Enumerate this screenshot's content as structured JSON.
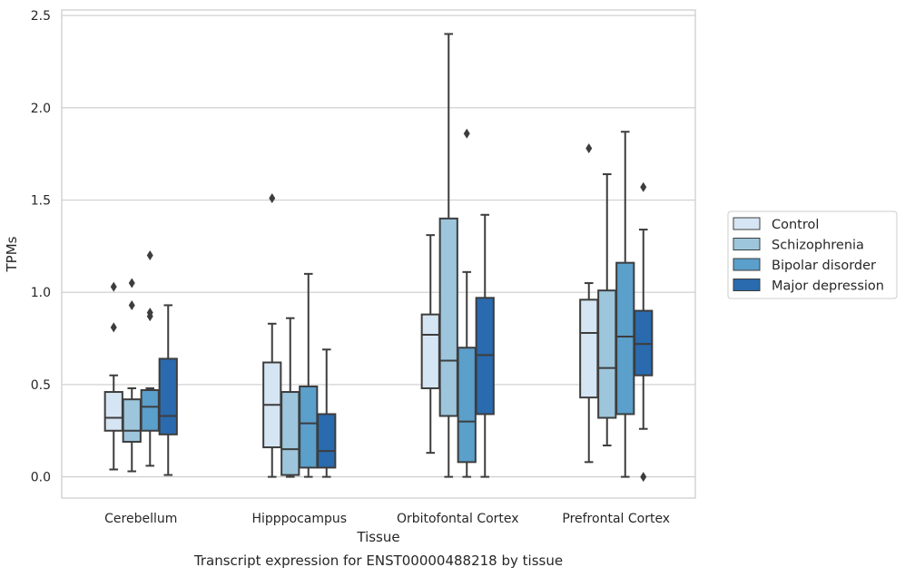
{
  "chart_data": {
    "type": "box",
    "caption": "Transcript expression for ENST00000488218 by tissue",
    "xlabel": "Tissue",
    "ylabel": "TPMs",
    "ylim": [
      -0.115,
      2.53
    ],
    "yticks": [
      "0.0",
      "0.5",
      "1.0",
      "1.5",
      "2.0",
      "2.5"
    ],
    "grid": "horizontal",
    "legend_position": "right",
    "categories": [
      "Cerebellum",
      "Hipppocampus",
      "Orbitofontal Cortex",
      "Prefrontal Cortex"
    ],
    "series": [
      {
        "name": "Control",
        "color": "#d6e5f3",
        "boxes": [
          {
            "whisker_low": 0.04,
            "q1": 0.25,
            "median": 0.32,
            "q3": 0.46,
            "whisker_high": 0.55,
            "outliers": [
              0.81,
              1.03
            ]
          },
          {
            "whisker_low": 0.0,
            "q1": 0.16,
            "median": 0.39,
            "q3": 0.62,
            "whisker_high": 0.83,
            "outliers": [
              1.51
            ]
          },
          {
            "whisker_low": 0.13,
            "q1": 0.48,
            "median": 0.77,
            "q3": 0.88,
            "whisker_high": 1.31,
            "outliers": []
          },
          {
            "whisker_low": 0.08,
            "q1": 0.43,
            "median": 0.78,
            "q3": 0.96,
            "whisker_high": 1.05,
            "outliers": [
              1.78
            ]
          }
        ]
      },
      {
        "name": "Schizophrenia",
        "color": "#9dc6dd",
        "boxes": [
          {
            "whisker_low": 0.03,
            "q1": 0.19,
            "median": 0.25,
            "q3": 0.42,
            "whisker_high": 0.48,
            "outliers": [
              0.93,
              1.05
            ]
          },
          {
            "whisker_low": 0.0,
            "q1": 0.01,
            "median": 0.15,
            "q3": 0.46,
            "whisker_high": 0.86,
            "outliers": []
          },
          {
            "whisker_low": 0.0,
            "q1": 0.33,
            "median": 0.63,
            "q3": 1.4,
            "whisker_high": 2.4,
            "outliers": []
          },
          {
            "whisker_low": 0.17,
            "q1": 0.32,
            "median": 0.59,
            "q3": 1.01,
            "whisker_high": 1.64,
            "outliers": []
          }
        ]
      },
      {
        "name": "Bipolar disorder",
        "color": "#5b9fcb",
        "boxes": [
          {
            "whisker_low": 0.06,
            "q1": 0.25,
            "median": 0.38,
            "q3": 0.47,
            "whisker_high": 0.48,
            "outliers": [
              0.87,
              0.89,
              1.2
            ]
          },
          {
            "whisker_low": 0.0,
            "q1": 0.05,
            "median": 0.29,
            "q3": 0.49,
            "whisker_high": 1.1,
            "outliers": []
          },
          {
            "whisker_low": 0.0,
            "q1": 0.08,
            "median": 0.3,
            "q3": 0.7,
            "whisker_high": 1.11,
            "outliers": [
              1.86
            ]
          },
          {
            "whisker_low": 0.0,
            "q1": 0.34,
            "median": 0.76,
            "q3": 1.16,
            "whisker_high": 1.87,
            "outliers": []
          }
        ]
      },
      {
        "name": "Major depression",
        "color": "#2a6aae",
        "boxes": [
          {
            "whisker_low": 0.01,
            "q1": 0.23,
            "median": 0.33,
            "q3": 0.64,
            "whisker_high": 0.93,
            "outliers": []
          },
          {
            "whisker_low": 0.0,
            "q1": 0.05,
            "median": 0.14,
            "q3": 0.34,
            "whisker_high": 0.69,
            "outliers": []
          },
          {
            "whisker_low": 0.0,
            "q1": 0.34,
            "median": 0.66,
            "q3": 0.97,
            "whisker_high": 1.42,
            "outliers": []
          },
          {
            "whisker_low": 0.26,
            "q1": 0.55,
            "median": 0.72,
            "q3": 0.9,
            "whisker_high": 1.34,
            "outliers": [
              0.0,
              1.57
            ]
          }
        ]
      }
    ]
  }
}
